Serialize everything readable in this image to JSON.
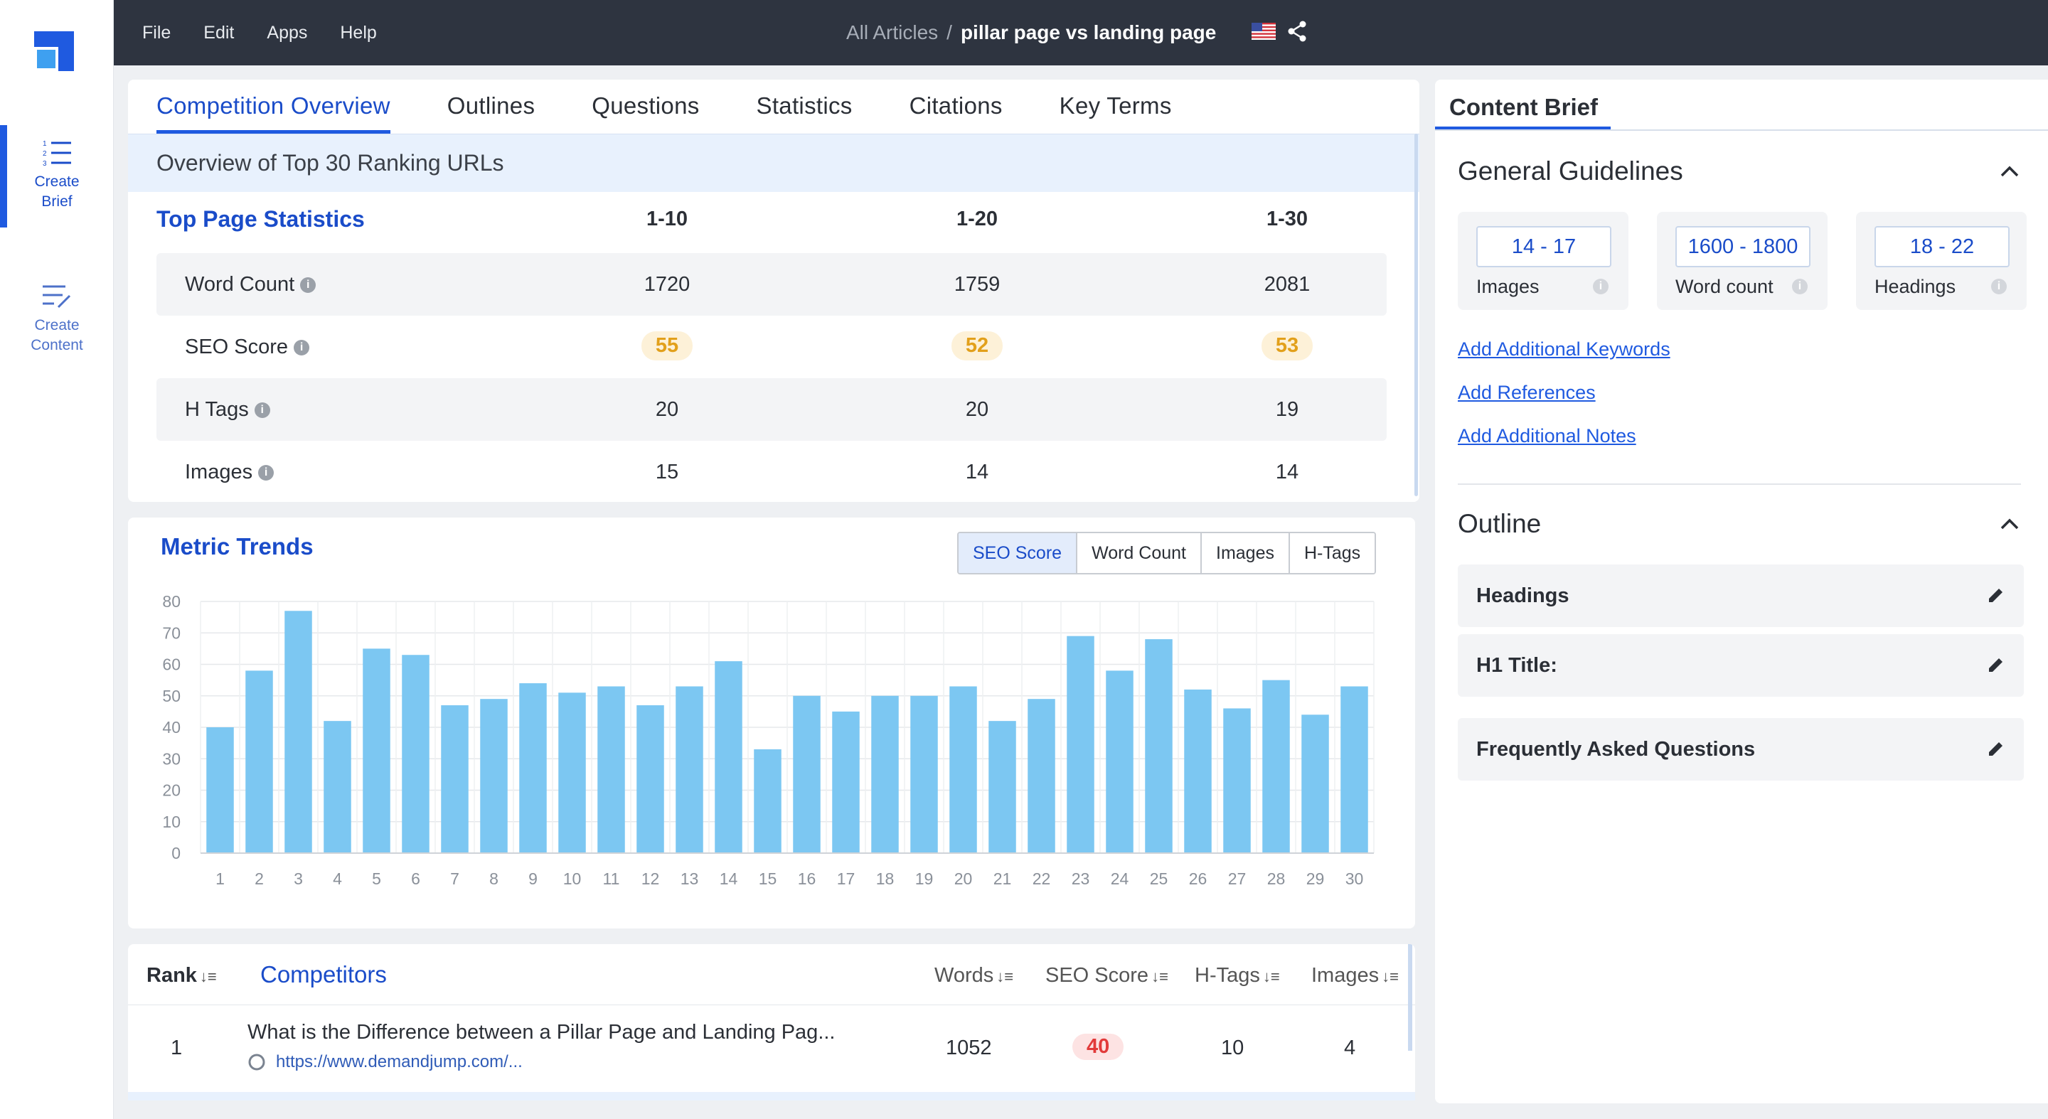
{
  "sidebar": {
    "items": [
      {
        "label_line1": "Create",
        "label_line2": "Brief",
        "icon": "list-icon",
        "active": true
      },
      {
        "label_line1": "Create",
        "label_line2": "Content",
        "icon": "edit-list-icon",
        "active": false
      }
    ]
  },
  "menu": [
    "File",
    "Edit",
    "Apps",
    "Help"
  ],
  "breadcrumb": {
    "root": "All Articles",
    "separator": "/",
    "current": "pillar page vs landing page"
  },
  "tabs": [
    "Competition Overview",
    "Outlines",
    "Questions",
    "Statistics",
    "Citations",
    "Key Terms"
  ],
  "overview": {
    "header": "Overview of Top 30 Ranking URLs",
    "stats_title": "Top Page Statistics",
    "columns": [
      "1-10",
      "1-20",
      "1-30"
    ],
    "rows": [
      {
        "label": "Word Count",
        "values": [
          "1720",
          "1759",
          "2081"
        ]
      },
      {
        "label": "SEO Score",
        "values": [
          "55",
          "52",
          "53"
        ]
      },
      {
        "label": "H Tags",
        "values": [
          "20",
          "20",
          "19"
        ]
      },
      {
        "label": "Images",
        "values": [
          "15",
          "14",
          "14"
        ]
      }
    ]
  },
  "trends": {
    "title": "Metric Trends",
    "toggles": [
      "SEO Score",
      "Word Count",
      "Images",
      "H-Tags"
    ],
    "selected": "SEO Score"
  },
  "chart_data": {
    "type": "bar",
    "categories": [
      "1",
      "2",
      "3",
      "4",
      "5",
      "6",
      "7",
      "8",
      "9",
      "10",
      "11",
      "12",
      "13",
      "14",
      "15",
      "16",
      "17",
      "18",
      "19",
      "20",
      "21",
      "22",
      "23",
      "24",
      "25",
      "26",
      "27",
      "28",
      "29",
      "30"
    ],
    "values": [
      40,
      58,
      77,
      42,
      65,
      63,
      47,
      49,
      54,
      51,
      53,
      47,
      53,
      61,
      33,
      50,
      45,
      50,
      50,
      53,
      42,
      49,
      69,
      58,
      68,
      52,
      46,
      55,
      44,
      53
    ],
    "yticks": [
      "0",
      "10",
      "20",
      "30",
      "40",
      "50",
      "60",
      "70",
      "80"
    ],
    "ylim": [
      0,
      80
    ],
    "grid": true,
    "bar_color": "#7cc7f2"
  },
  "competitors": {
    "headers": {
      "rank": "Rank",
      "competitors": "Competitors",
      "words": "Words",
      "seo": "SEO Score",
      "htags": "H-Tags",
      "images": "Images"
    },
    "rows": [
      {
        "rank": "1",
        "title": "What is the Difference between a Pillar Page and Landing Pag...",
        "url": "https://www.demandjump.com/...",
        "words": "1052",
        "seo": "40",
        "htags": "10",
        "images": "4"
      }
    ]
  },
  "brief": {
    "tab": "Content Brief",
    "general_title": "General Guidelines",
    "guidelines": [
      {
        "value": "14 - 17",
        "label": "Images"
      },
      {
        "value": "1600 - 1800",
        "label": "Word count"
      },
      {
        "value": "18 - 22",
        "label": "Headings"
      }
    ],
    "links": [
      "Add Additional Keywords",
      "Add References",
      "Add Additional Notes"
    ],
    "outline_title": "Outline",
    "outline_items": [
      "Headings",
      "H1 Title:",
      "Frequently Asked Questions"
    ]
  },
  "colors": {
    "accent": "#1f5ae0",
    "topbar": "#2e3440",
    "bar": "#7cc7f2"
  }
}
